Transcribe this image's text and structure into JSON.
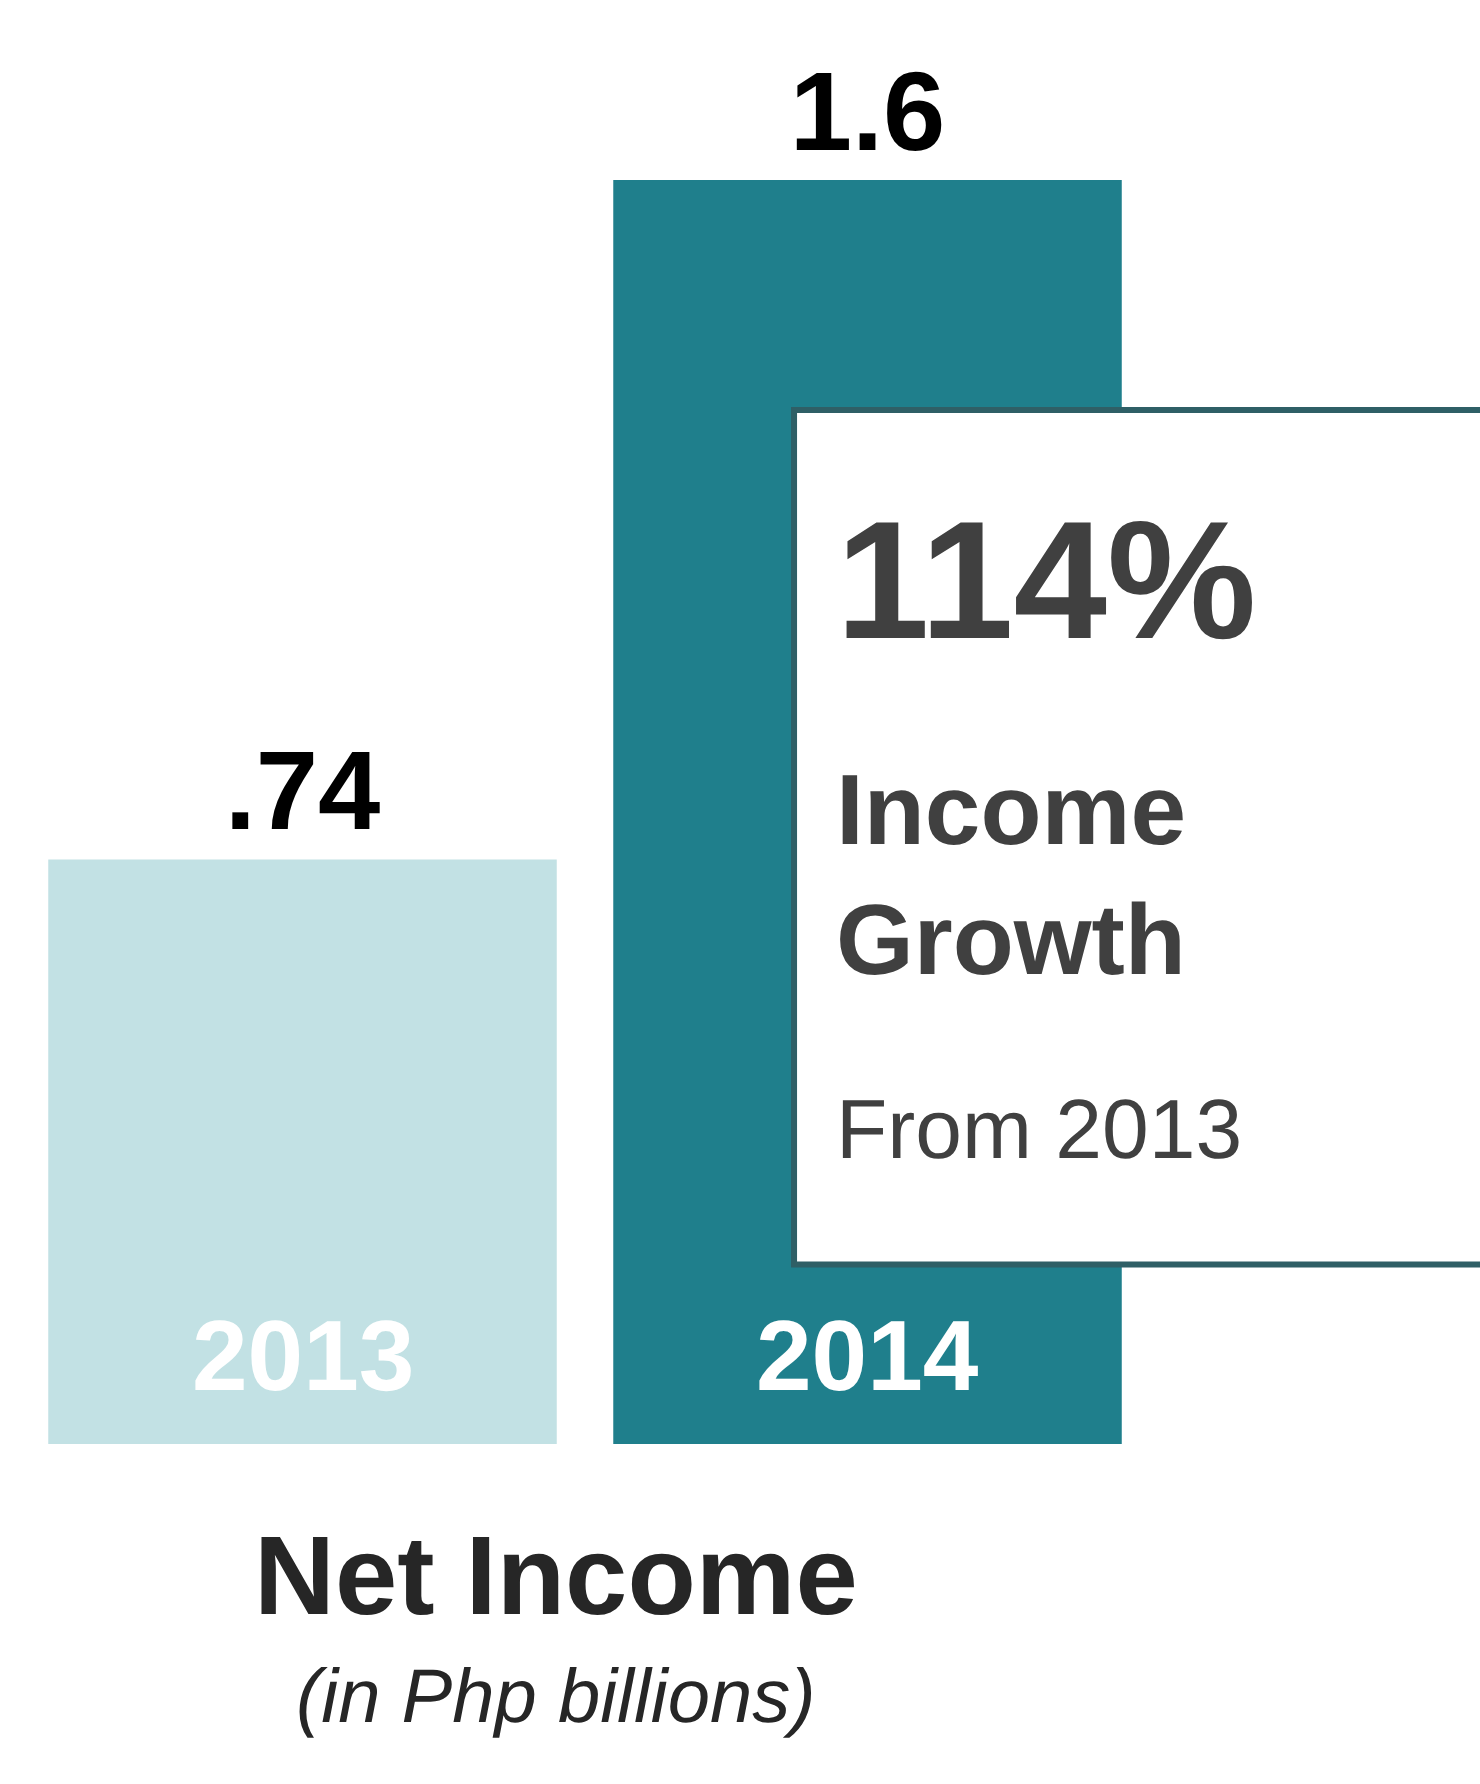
{
  "chart_data": {
    "type": "bar",
    "xlabel": "Net Income",
    "subtitle": "(in Php billions)",
    "categories": [
      "2013",
      "2014"
    ],
    "values": [
      0.74,
      1.6
    ],
    "value_labels": [
      ".74",
      "1.6"
    ],
    "colors": [
      "#c2e1e4",
      "#1f7f8c"
    ],
    "annotations": [
      "114%",
      "Income Growth",
      "From 2013"
    ]
  }
}
